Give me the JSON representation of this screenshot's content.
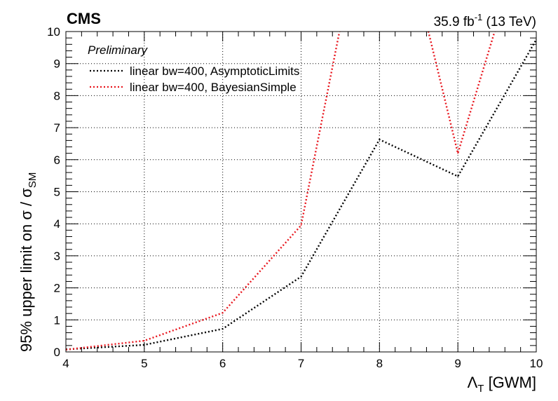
{
  "header": {
    "experiment": "CMS",
    "lumi_main": "35.9 fb",
    "lumi_sup": "-1",
    "lumi_energy": " (13 TeV)",
    "status": "Preliminary"
  },
  "axes": {
    "ylabel_main": "95% upper limit on σ / σ",
    "ylabel_sub": "SM",
    "xlabel_symbol": "Λ",
    "xlabel_sub": "T",
    "xlabel_unit": " [GWM]"
  },
  "chart_data": {
    "type": "line",
    "xlim": [
      4,
      10
    ],
    "ylim": [
      0,
      10
    ],
    "grid": true,
    "legend_position": "top-left",
    "xticks": [
      4,
      5,
      6,
      7,
      8,
      9,
      10
    ],
    "yticks": [
      0,
      1,
      2,
      3,
      4,
      5,
      6,
      7,
      8,
      9,
      10
    ],
    "series": [
      {
        "name": "linear bw=400, AsymptoticLimits",
        "color": "#000000",
        "style": "dotted",
        "x": [
          4,
          5,
          6,
          7,
          8,
          9,
          10
        ],
        "y": [
          0.08,
          0.22,
          0.72,
          2.35,
          6.63,
          5.48,
          9.75
        ]
      },
      {
        "name": "linear bw=400, BayesianSimple",
        "color": "#e8141c",
        "style": "dotted",
        "x": [
          4,
          5,
          6,
          7,
          8,
          9,
          10
        ],
        "y": [
          0.07,
          0.35,
          1.22,
          3.95,
          16.3,
          6.2,
          14.3
        ]
      }
    ]
  }
}
